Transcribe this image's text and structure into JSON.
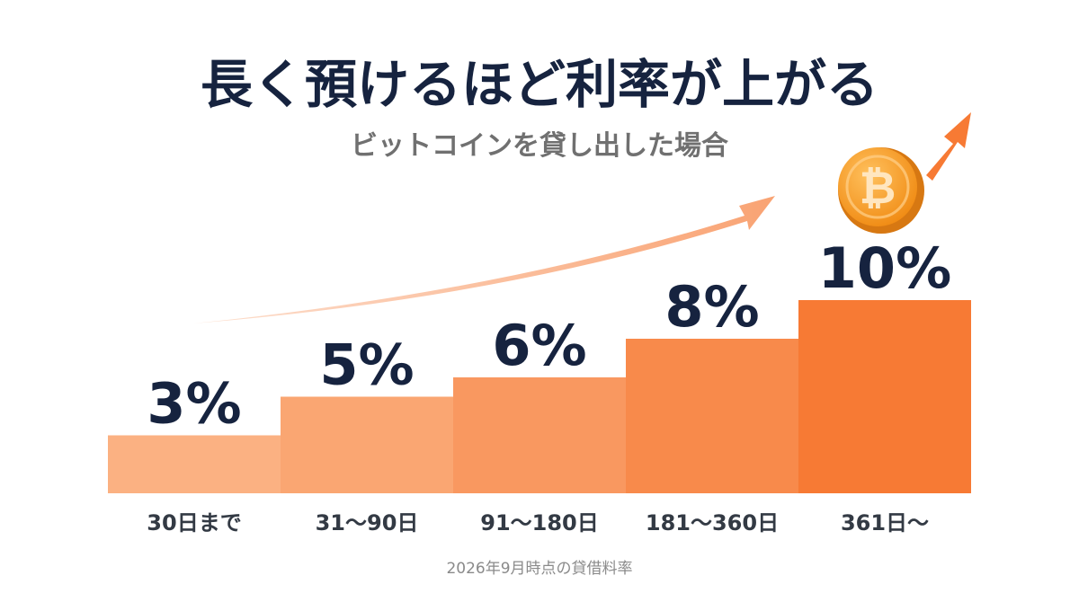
{
  "chart_data": {
    "type": "bar",
    "title": "長く預けるほど利率が上がる",
    "subtitle": "ビットコインを貸し出した場合",
    "categories": [
      "30日まで",
      "31〜90日",
      "91〜180日",
      "181〜360日",
      "361日〜"
    ],
    "values": [
      3,
      5,
      6,
      8,
      10
    ],
    "value_labels": [
      "3%",
      "5%",
      "6%",
      "8%",
      "10%"
    ],
    "ylim": [
      0,
      12
    ],
    "grid": false,
    "legend": "none",
    "footnote": "2026年9月時点の貸借料率"
  },
  "colors": {
    "bars": [
      "#fbb182",
      "#faa672",
      "#f99860",
      "#f88a4b",
      "#f77a34"
    ],
    "arrow": "#f9a373",
    "coin": "#f7931a",
    "title": "#16233f"
  },
  "icons": {
    "coin": "bitcoin-coin-icon",
    "trend_arrow": "trend-arrow-icon"
  }
}
